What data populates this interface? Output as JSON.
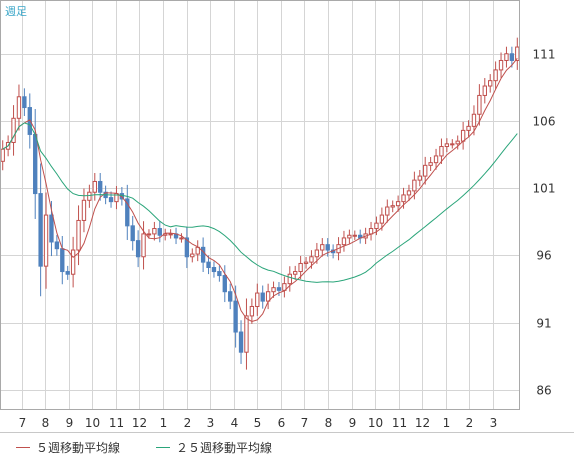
{
  "header": {
    "period_label": "週足"
  },
  "colors": {
    "up": "#c0504d",
    "down": "#4f81bd",
    "ma5": "#c0504d",
    "ma25": "#2aa57a",
    "grid": "#d5d5d5",
    "frame": "#a9a9a9",
    "text": "#333333",
    "period": "#3aa6c8"
  },
  "legend": [
    {
      "name": "５週移動平均線",
      "color": "#c0504d"
    },
    {
      "name": "２５週移動平均線",
      "color": "#2aa57a"
    }
  ],
  "chart_data": {
    "type": "candlestick",
    "title": "",
    "xlabel": "",
    "ylabel": "",
    "ylim": [
      84.5,
      115
    ],
    "yticks": [
      86,
      91,
      96,
      101,
      106,
      111
    ],
    "x_tick_labels": [
      "7",
      "8",
      "9",
      "10",
      "11",
      "12",
      "1",
      "2",
      "3",
      "4",
      "5",
      "6",
      "7",
      "8",
      "9",
      "10",
      "11",
      "12",
      "1",
      "2",
      "3"
    ],
    "weeks_before_first_tick": 4,
    "weeks_per_month": 4.35,
    "grid": true,
    "legend_position": "bottom",
    "closes": [
      103.9,
      104.4,
      106.2,
      107.8,
      107.0,
      105.0,
      100.6,
      95.2,
      99.0,
      97.0,
      96.5,
      94.8,
      94.6,
      96.4,
      98.6,
      100.1,
      100.7,
      101.5,
      100.7,
      100.3,
      100.0,
      100.6,
      100.2,
      98.2,
      97.1,
      95.9,
      97.6,
      97.6,
      98.0,
      97.5,
      97.6,
      97.6,
      97.3,
      97.3,
      95.9,
      96.1,
      96.6,
      95.5,
      95.1,
      94.8,
      94.5,
      93.3,
      92.6,
      90.3,
      88.8,
      91.5,
      92.2,
      93.2,
      92.6,
      93.3,
      93.6,
      93.4,
      93.9,
      94.6,
      94.8,
      95.4,
      95.5,
      95.9,
      96.4,
      96.8,
      96.4,
      96.2,
      96.8,
      97.3,
      97.5,
      97.5,
      97.3,
      97.6,
      98.0,
      98.4,
      99.0,
      99.6,
      99.7,
      100.0,
      100.5,
      100.8,
      101.6,
      101.9,
      102.7,
      102.9,
      103.4,
      104.1,
      104.3,
      104.3,
      104.5,
      105.3,
      105.6,
      106.5,
      107.9,
      108.6,
      109.0,
      109.8,
      110.5,
      111.0,
      110.5,
      111.5
    ],
    "series": [
      {
        "name": "５週移動平均線"
      },
      {
        "name": "２５週移動平均線"
      }
    ]
  }
}
